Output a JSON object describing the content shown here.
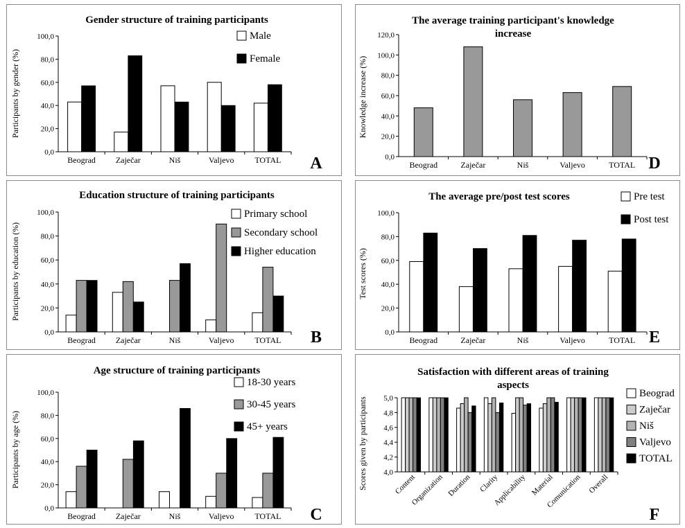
{
  "chart_data": [
    {
      "id": "A",
      "type": "bar",
      "title": "Gender structure of training participants",
      "ylabel": "Participants by gender (%)",
      "xlabel": "",
      "panel_letter": "A",
      "ylim": [
        0,
        100
      ],
      "yticks": [
        "0,0",
        "20,0",
        "40,0",
        "60,0",
        "80,0",
        "100,0"
      ],
      "categories": [
        "Beograd",
        "Zaječar",
        "Niš",
        "Valjevo",
        "TOTAL"
      ],
      "series": [
        {
          "name": "Male",
          "color": "#ffffff",
          "values": [
            43,
            17,
            57,
            60,
            42
          ]
        },
        {
          "name": "Female",
          "color": "#000000",
          "values": [
            57,
            83,
            43,
            40,
            58
          ]
        }
      ],
      "legend_position": "top-right"
    },
    {
      "id": "B",
      "type": "bar",
      "title": "Education structure of training participants",
      "ylabel": "Participants by education (%)",
      "xlabel": "",
      "panel_letter": "B",
      "ylim": [
        0,
        100
      ],
      "yticks": [
        "0,0",
        "20,0",
        "40,0",
        "60,0",
        "80,0",
        "100,0"
      ],
      "categories": [
        "Beograd",
        "Zaječar",
        "Niš",
        "Valjevo",
        "TOTAL"
      ],
      "series": [
        {
          "name": "Primary school",
          "color": "#ffffff",
          "values": [
            14,
            33,
            0,
            10,
            16
          ]
        },
        {
          "name": "Secondary school",
          "color": "#999999",
          "values": [
            43,
            42,
            43,
            90,
            54
          ]
        },
        {
          "name": "Higher education",
          "color": "#000000",
          "values": [
            43,
            25,
            57,
            0,
            30
          ]
        }
      ],
      "legend_position": "top-right"
    },
    {
      "id": "C",
      "type": "bar",
      "title": "Age structure of training participants",
      "ylabel": "Participants by age (%)",
      "xlabel": "",
      "panel_letter": "C",
      "ylim": [
        0,
        100
      ],
      "yticks": [
        "0,0",
        "20,0",
        "40,0",
        "60,0",
        "80,0",
        "100,0"
      ],
      "categories": [
        "Beograd",
        "Zaječar",
        "Niš",
        "Valjevo",
        "TOTAL"
      ],
      "series": [
        {
          "name": "18-30 years",
          "color": "#ffffff",
          "values": [
            14,
            0,
            14,
            10,
            9
          ]
        },
        {
          "name": "30-45 years",
          "color": "#999999",
          "values": [
            36,
            42,
            0,
            30,
            30
          ]
        },
        {
          "name": "45+ years",
          "color": "#000000",
          "values": [
            50,
            58,
            86,
            60,
            61
          ]
        }
      ],
      "legend_position": "top-right"
    },
    {
      "id": "D",
      "type": "bar",
      "title": "The average training participant's knowledge increase",
      "ylabel": "Knowledge increase (%)",
      "xlabel": "",
      "panel_letter": "D",
      "ylim": [
        0,
        120
      ],
      "yticks": [
        "0,0",
        "20,0",
        "40,0",
        "60,0",
        "80,0",
        "100,0",
        "120,0"
      ],
      "categories": [
        "Beograd",
        "Zaječar",
        "Niš",
        "Valjevo",
        "TOTAL"
      ],
      "series": [
        {
          "name": "",
          "color": "#999999",
          "values": [
            48,
            108,
            56,
            63,
            69
          ]
        }
      ],
      "legend_position": "none"
    },
    {
      "id": "E",
      "type": "bar",
      "title": "The average pre/post test scores",
      "ylabel": "Test scores (%)",
      "xlabel": "",
      "panel_letter": "E",
      "ylim": [
        0,
        100
      ],
      "yticks": [
        "0,0",
        "20,0",
        "40,0",
        "60,0",
        "80,0",
        "100,0"
      ],
      "categories": [
        "Beograd",
        "Zaječar",
        "Niš",
        "Valjevo",
        "TOTAL"
      ],
      "series": [
        {
          "name": "Pre test",
          "color": "#ffffff",
          "values": [
            59,
            38,
            53,
            55,
            51
          ]
        },
        {
          "name": "Post test",
          "color": "#000000",
          "values": [
            83,
            70,
            81,
            77,
            78
          ]
        }
      ],
      "legend_position": "top-right"
    },
    {
      "id": "F",
      "type": "bar",
      "title": "Satisfaction with different areas of training aspects",
      "ylabel": "Scores given by participants",
      "xlabel": "",
      "panel_letter": "F",
      "ylim": [
        4.0,
        5.0
      ],
      "yticks": [
        "4,0",
        "4,2",
        "4,4",
        "4,6",
        "4,8",
        "5,0"
      ],
      "categories": [
        "Content",
        "Organization",
        "Duration",
        "Clarity",
        "Applicability",
        "Material",
        "Comunication",
        "Overall"
      ],
      "series": [
        {
          "name": "Beograd",
          "color": "#ffffff",
          "values": [
            5.0,
            5.0,
            4.86,
            5.0,
            4.79,
            4.86,
            5.0,
            5.0
          ]
        },
        {
          "name": "Zaječar",
          "color": "#cccccc",
          "values": [
            5.0,
            5.0,
            4.92,
            4.92,
            5.0,
            4.92,
            5.0,
            5.0
          ]
        },
        {
          "name": "Niš",
          "color": "#b3b3b3",
          "values": [
            5.0,
            5.0,
            5.0,
            5.0,
            5.0,
            5.0,
            5.0,
            5.0
          ]
        },
        {
          "name": "Valjevo",
          "color": "#808080",
          "values": [
            5.0,
            5.0,
            4.8,
            4.8,
            4.9,
            5.0,
            5.0,
            5.0
          ]
        },
        {
          "name": "TOTAL",
          "color": "#000000",
          "values": [
            5.0,
            5.0,
            4.89,
            4.93,
            4.92,
            4.94,
            5.0,
            5.0
          ]
        }
      ],
      "legend_position": "right"
    }
  ]
}
